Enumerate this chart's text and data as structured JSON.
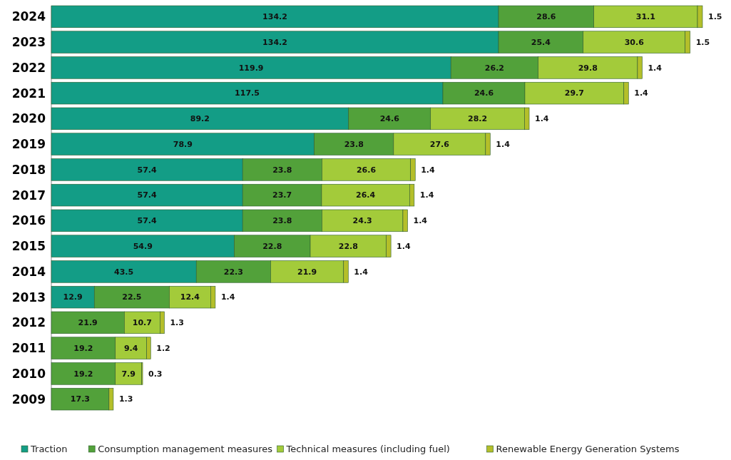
{
  "chart_data": {
    "type": "bar",
    "orientation": "horizontal",
    "stacked": true,
    "data_labels": true,
    "legend": "bottom",
    "categories": [
      "2024",
      "2023",
      "2022",
      "2021",
      "2020",
      "2019",
      "2018",
      "2017",
      "2016",
      "2015",
      "2014",
      "2013",
      "2012",
      "2011",
      "2010",
      "2009"
    ],
    "series": [
      {
        "name": "Traction",
        "color": "#139d86",
        "values": [
          134.2,
          134.2,
          119.9,
          117.5,
          89.2,
          78.9,
          57.4,
          57.4,
          57.4,
          54.9,
          43.5,
          12.9,
          null,
          null,
          null,
          null
        ]
      },
      {
        "name": "Consumption management measures",
        "color": "#52a13a",
        "values": [
          28.6,
          25.4,
          26.2,
          24.6,
          24.6,
          23.8,
          23.8,
          23.7,
          23.8,
          22.8,
          22.3,
          22.5,
          21.9,
          19.2,
          19.2,
          17.3
        ]
      },
      {
        "name": "Technical measures (including fuel)",
        "color": "#a3cb3a",
        "values": [
          31.1,
          30.6,
          29.8,
          29.7,
          28.2,
          27.6,
          26.6,
          26.4,
          24.3,
          22.8,
          21.9,
          12.4,
          10.7,
          9.4,
          7.9,
          null
        ]
      },
      {
        "name": "Renewable Energy Generation Systems",
        "color": "#b4bf2a",
        "values": [
          1.5,
          1.5,
          1.4,
          1.4,
          1.4,
          1.4,
          1.4,
          1.4,
          1.4,
          1.4,
          1.4,
          1.4,
          1.3,
          1.2,
          0.3,
          1.3
        ]
      }
    ]
  }
}
